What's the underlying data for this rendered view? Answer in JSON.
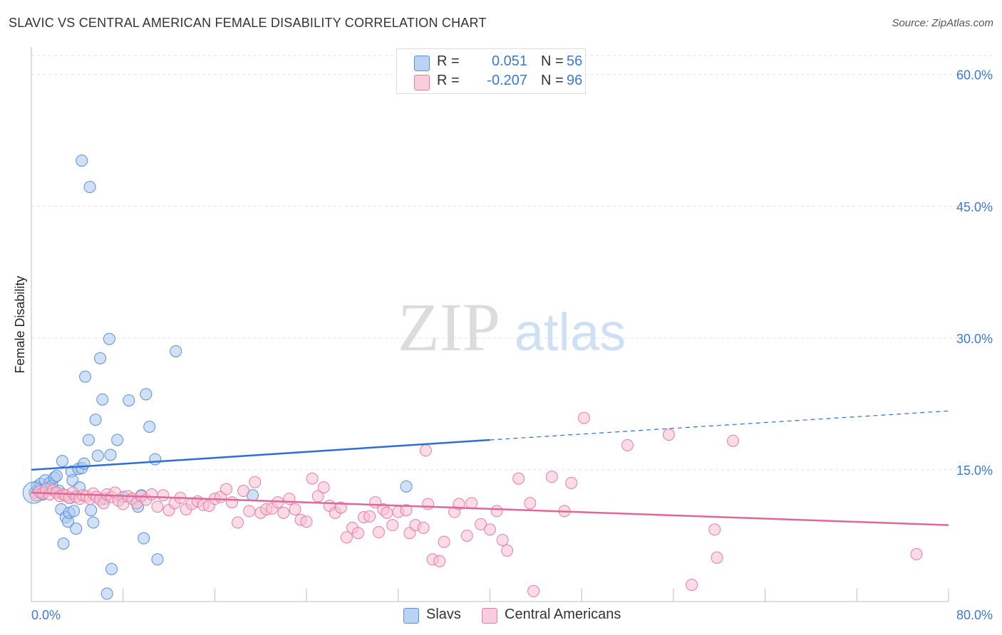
{
  "header": {
    "title": "SLAVIC VS CENTRAL AMERICAN FEMALE DISABILITY CORRELATION CHART",
    "source": "Source: ZipAtlas.com"
  },
  "watermark": {
    "zip": "ZIP",
    "atlas": "atlas"
  },
  "legend": {
    "rows": [
      {
        "r_label": "R =",
        "r_value": "0.051",
        "n_label": "N =",
        "n_value": "56",
        "color": "#a9c8f0",
        "border": "#5b8fd9"
      },
      {
        "r_label": "R =",
        "r_value": "-0.207",
        "n_label": "N =",
        "n_value": "96",
        "color": "#f7c0d2",
        "border": "#e57fa3"
      }
    ]
  },
  "chart_data": {
    "type": "scatter",
    "title": "SLAVIC VS CENTRAL AMERICAN FEMALE DISABILITY CORRELATION CHART",
    "xlabel": "",
    "ylabel": "Female Disability",
    "xlim": [
      0,
      80
    ],
    "ylim": [
      0,
      62
    ],
    "x_tick_labels": [
      "0.0%",
      "80.0%"
    ],
    "y_ticks": [
      15,
      30,
      45,
      60
    ],
    "y_tick_labels": [
      "15.0%",
      "30.0%",
      "45.0%",
      "60.0%"
    ],
    "grid": true,
    "series": [
      {
        "name": "Slavs",
        "color": "#a9c8f0",
        "stroke": "#5b8fd9",
        "line_color": "#2f6fd4",
        "trend": {
          "x0": 0,
          "y0": 15.0,
          "x1": 40,
          "y1": 18.4,
          "x_dash_end": 80,
          "y_dash_end": 21.7
        },
        "points": [
          [
            0.3,
            12.4
          ],
          [
            0.5,
            13.1
          ],
          [
            0.6,
            12.7
          ],
          [
            0.8,
            13.4
          ],
          [
            1.0,
            12.2
          ],
          [
            1.2,
            13.8
          ],
          [
            1.4,
            12.9
          ],
          [
            1.6,
            13.5
          ],
          [
            1.8,
            13.2
          ],
          [
            2.0,
            14.1
          ],
          [
            2.2,
            14.3
          ],
          [
            2.4,
            12.6
          ],
          [
            2.6,
            10.5
          ],
          [
            2.7,
            16.0
          ],
          [
            2.8,
            6.6
          ],
          [
            3.0,
            9.6
          ],
          [
            3.2,
            9.1
          ],
          [
            3.3,
            10.1
          ],
          [
            3.4,
            11.8
          ],
          [
            3.5,
            14.8
          ],
          [
            3.6,
            13.8
          ],
          [
            3.7,
            10.3
          ],
          [
            3.9,
            8.3
          ],
          [
            4.1,
            15.1
          ],
          [
            4.2,
            13.0
          ],
          [
            4.4,
            15.2
          ],
          [
            4.6,
            15.7
          ],
          [
            4.7,
            25.6
          ],
          [
            5.0,
            18.4
          ],
          [
            5.2,
            10.4
          ],
          [
            5.4,
            9.0
          ],
          [
            5.6,
            20.7
          ],
          [
            5.8,
            16.6
          ],
          [
            6.0,
            27.7
          ],
          [
            6.2,
            23.0
          ],
          [
            6.4,
            11.7
          ],
          [
            6.6,
            0.9
          ],
          [
            6.8,
            29.9
          ],
          [
            6.9,
            16.7
          ],
          [
            7.0,
            3.7
          ],
          [
            7.5,
            18.4
          ],
          [
            8.0,
            11.9
          ],
          [
            8.5,
            22.9
          ],
          [
            8.8,
            11.7
          ],
          [
            9.3,
            10.8
          ],
          [
            9.6,
            12.1
          ],
          [
            9.8,
            7.2
          ],
          [
            10.0,
            23.6
          ],
          [
            10.3,
            19.9
          ],
          [
            10.8,
            16.2
          ],
          [
            11.0,
            4.8
          ],
          [
            12.6,
            28.5
          ],
          [
            19.3,
            12.1
          ],
          [
            32.7,
            13.1
          ],
          [
            4.4,
            50.2
          ],
          [
            5.1,
            47.2
          ]
        ]
      },
      {
        "name": "Central Americans",
        "color": "#f7c0d2",
        "stroke": "#e57fa3",
        "line_color": "#e0679a",
        "trend": {
          "x0": 0,
          "y0": 12.4,
          "x1": 80,
          "y1": 8.7
        },
        "points": [
          [
            0.4,
            12.1
          ],
          [
            0.7,
            12.5
          ],
          [
            1.0,
            12.3
          ],
          [
            1.3,
            12.8
          ],
          [
            1.6,
            12.2
          ],
          [
            1.9,
            12.7
          ],
          [
            2.2,
            12.4
          ],
          [
            2.5,
            12.0
          ],
          [
            2.8,
            12.2
          ],
          [
            3.0,
            12.1
          ],
          [
            3.3,
            11.8
          ],
          [
            3.6,
            12.4
          ],
          [
            3.9,
            11.9
          ],
          [
            4.2,
            11.7
          ],
          [
            4.5,
            12.1
          ],
          [
            4.8,
            12.0
          ],
          [
            5.1,
            11.7
          ],
          [
            5.4,
            12.3
          ],
          [
            5.7,
            11.9
          ],
          [
            6.0,
            11.6
          ],
          [
            6.3,
            11.2
          ],
          [
            6.6,
            12.2
          ],
          [
            7.0,
            11.9
          ],
          [
            7.3,
            12.4
          ],
          [
            7.6,
            11.5
          ],
          [
            8.0,
            11.1
          ],
          [
            8.4,
            12.0
          ],
          [
            8.8,
            11.7
          ],
          [
            9.2,
            11.2
          ],
          [
            9.6,
            12.0
          ],
          [
            10.0,
            11.6
          ],
          [
            10.5,
            12.2
          ],
          [
            11.0,
            10.8
          ],
          [
            11.5,
            12.1
          ],
          [
            12.0,
            10.4
          ],
          [
            12.5,
            11.2
          ],
          [
            13.0,
            11.8
          ],
          [
            13.5,
            10.5
          ],
          [
            14.0,
            11.1
          ],
          [
            14.5,
            11.4
          ],
          [
            15.0,
            11.0
          ],
          [
            15.5,
            10.9
          ],
          [
            16.0,
            11.7
          ],
          [
            16.5,
            11.9
          ],
          [
            17.0,
            12.8
          ],
          [
            17.5,
            11.3
          ],
          [
            18.0,
            9.0
          ],
          [
            18.5,
            12.6
          ],
          [
            19.0,
            10.3
          ],
          [
            19.5,
            13.6
          ],
          [
            20.0,
            10.1
          ],
          [
            20.5,
            10.5
          ],
          [
            21.0,
            10.6
          ],
          [
            21.5,
            11.3
          ],
          [
            22.0,
            10.1
          ],
          [
            22.5,
            11.7
          ],
          [
            23.0,
            10.5
          ],
          [
            23.5,
            9.3
          ],
          [
            24.0,
            9.1
          ],
          [
            24.5,
            14.0
          ],
          [
            25.0,
            12.0
          ],
          [
            25.5,
            13.0
          ],
          [
            26.0,
            10.9
          ],
          [
            26.5,
            10.1
          ],
          [
            27.0,
            10.7
          ],
          [
            27.5,
            7.3
          ],
          [
            28.0,
            8.4
          ],
          [
            28.5,
            7.8
          ],
          [
            29.0,
            9.6
          ],
          [
            29.5,
            9.7
          ],
          [
            30.0,
            11.3
          ],
          [
            30.3,
            7.9
          ],
          [
            30.7,
            10.5
          ],
          [
            31.0,
            10.1
          ],
          [
            31.5,
            8.7
          ],
          [
            32.0,
            10.2
          ],
          [
            32.7,
            10.4
          ],
          [
            33.0,
            7.8
          ],
          [
            33.5,
            8.7
          ],
          [
            34.2,
            8.4
          ],
          [
            34.6,
            11.1
          ],
          [
            35.0,
            4.8
          ],
          [
            35.6,
            4.6
          ],
          [
            36.0,
            6.8
          ],
          [
            36.9,
            10.2
          ],
          [
            37.3,
            11.1
          ],
          [
            38.0,
            7.5
          ],
          [
            38.4,
            11.2
          ],
          [
            39.2,
            8.8
          ],
          [
            40.0,
            8.2
          ],
          [
            40.6,
            10.3
          ],
          [
            41.1,
            7.0
          ],
          [
            41.5,
            5.8
          ],
          [
            42.5,
            14.0
          ],
          [
            43.5,
            11.2
          ],
          [
            43.8,
            1.2
          ]
        ],
        "extra_points": [
          [
            34.4,
            17.2
          ],
          [
            45.4,
            14.2
          ],
          [
            46.5,
            10.3
          ],
          [
            47.1,
            13.5
          ],
          [
            48.2,
            20.9
          ],
          [
            52.0,
            17.8
          ],
          [
            55.6,
            19.0
          ],
          [
            57.6,
            1.9
          ],
          [
            59.6,
            8.2
          ],
          [
            59.8,
            5.0
          ],
          [
            61.2,
            18.3
          ],
          [
            77.2,
            5.4
          ]
        ]
      }
    ]
  }
}
